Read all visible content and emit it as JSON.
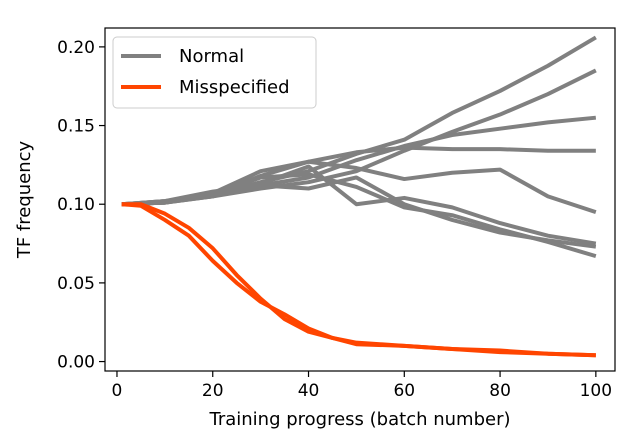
{
  "chart_data": {
    "type": "line",
    "title": "",
    "xlabel": "Training progress (batch number)",
    "ylabel": "TF frequency",
    "xlim": [
      -2.5,
      104
    ],
    "ylim": [
      -0.006,
      0.212
    ],
    "x_ticks": [
      0,
      20,
      40,
      60,
      80,
      100
    ],
    "x_tick_labels": [
      "0",
      "20",
      "40",
      "60",
      "80",
      "100"
    ],
    "y_ticks": [
      0.0,
      0.05,
      0.1,
      0.15,
      0.2
    ],
    "y_tick_labels": [
      "0.00",
      "0.05",
      "0.10",
      "0.15",
      "0.20"
    ],
    "grid": false,
    "legend_position": "top-left",
    "legend": [
      {
        "label": "Normal",
        "color": "#808080"
      },
      {
        "label": "Misspecified",
        "color": "#ff4500"
      }
    ],
    "series": [
      {
        "group": "Normal",
        "color": "#808080",
        "x": [
          1,
          10,
          20,
          30,
          40,
          50,
          60,
          70,
          80,
          90,
          100
        ],
        "y": [
          0.1,
          0.101,
          0.106,
          0.114,
          0.121,
          0.132,
          0.141,
          0.158,
          0.172,
          0.188,
          0.206
        ]
      },
      {
        "group": "Normal",
        "color": "#808080",
        "x": [
          1,
          10,
          20,
          30,
          40,
          50,
          60,
          70,
          80,
          90,
          100
        ],
        "y": [
          0.1,
          0.101,
          0.105,
          0.11,
          0.114,
          0.121,
          0.134,
          0.146,
          0.157,
          0.17,
          0.185
        ]
      },
      {
        "group": "Normal",
        "color": "#808080",
        "x": [
          1,
          10,
          20,
          30,
          40,
          50,
          60,
          70,
          80,
          90,
          100
        ],
        "y": [
          0.1,
          0.102,
          0.105,
          0.112,
          0.117,
          0.128,
          0.137,
          0.144,
          0.148,
          0.152,
          0.155
        ]
      },
      {
        "group": "Normal",
        "color": "#808080",
        "x": [
          1,
          10,
          20,
          30,
          40,
          50,
          60,
          70,
          80,
          90,
          100
        ],
        "y": [
          0.1,
          0.101,
          0.106,
          0.118,
          0.127,
          0.133,
          0.136,
          0.135,
          0.135,
          0.134,
          0.134
        ]
      },
      {
        "group": "Normal",
        "color": "#808080",
        "x": [
          1,
          10,
          20,
          30,
          40,
          50,
          60,
          70,
          80,
          90,
          100
        ],
        "y": [
          0.1,
          0.101,
          0.107,
          0.121,
          0.127,
          0.123,
          0.116,
          0.12,
          0.122,
          0.105,
          0.095
        ]
      },
      {
        "group": "Normal",
        "color": "#808080",
        "x": [
          1,
          10,
          20,
          30,
          40,
          50,
          60,
          70,
          80,
          90,
          100
        ],
        "y": [
          0.1,
          0.102,
          0.108,
          0.112,
          0.11,
          0.117,
          0.1,
          0.09,
          0.082,
          0.077,
          0.073
        ]
      },
      {
        "group": "Normal",
        "color": "#808080",
        "x": [
          1,
          10,
          20,
          30,
          40,
          50,
          60,
          70,
          80,
          90,
          100
        ],
        "y": [
          0.1,
          0.101,
          0.105,
          0.113,
          0.124,
          0.1,
          0.104,
          0.098,
          0.088,
          0.08,
          0.075
        ]
      },
      {
        "group": "Normal",
        "color": "#808080",
        "x": [
          1,
          10,
          20,
          30,
          40,
          50,
          60,
          70,
          80,
          90,
          100
        ],
        "y": [
          0.1,
          0.102,
          0.106,
          0.117,
          0.119,
          0.111,
          0.098,
          0.093,
          0.084,
          0.076,
          0.067
        ]
      },
      {
        "group": "Misspecified",
        "color": "#ff4500",
        "x": [
          1,
          5,
          10,
          15,
          20,
          25,
          30,
          35,
          40,
          45,
          50,
          60,
          70,
          80,
          90,
          100
        ],
        "y": [
          0.1,
          0.1,
          0.094,
          0.085,
          0.072,
          0.055,
          0.04,
          0.027,
          0.019,
          0.015,
          0.012,
          0.01,
          0.008,
          0.007,
          0.005,
          0.004
        ]
      },
      {
        "group": "Misspecified",
        "color": "#ff4500",
        "x": [
          1,
          5,
          10,
          15,
          20,
          25,
          30,
          35,
          40,
          45,
          50,
          60,
          70,
          80,
          90,
          100
        ],
        "y": [
          0.1,
          0.099,
          0.09,
          0.08,
          0.064,
          0.05,
          0.038,
          0.03,
          0.021,
          0.015,
          0.011,
          0.01,
          0.008,
          0.006,
          0.005,
          0.004
        ]
      }
    ]
  }
}
